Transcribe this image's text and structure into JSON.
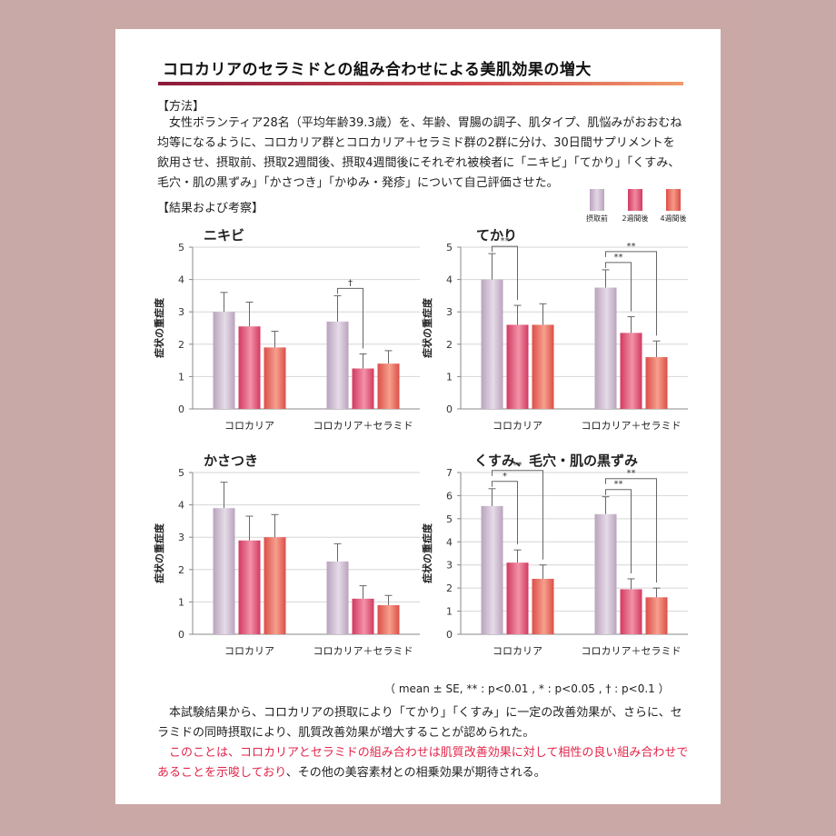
{
  "title": "コロカリアのセラミドとの組み合わせによる美肌効果の増大",
  "method": {
    "heading": "【方法】",
    "body": "女性ボランティア28名（平均年齢39.3歳）を、年齢、胃腸の調子、肌タイプ、肌悩みがおおむね均等になるように、コロカリア群とコロカリア＋セラミド群の2群に分け、30日間サプリメントを飲用させ、摂取前、摂取2週間後、摂取4週間後にそれぞれ被検者に「ニキビ」「てかり」「くすみ、毛穴・肌の黒ずみ」「かさつき」「かゆみ・発疹」について自己評価させた。"
  },
  "results_heading": "【結果および考察】",
  "legend": [
    {
      "label": "摂取前",
      "color": "#c7b3cb"
    },
    {
      "label": "2週間後",
      "color": "#df4f72"
    },
    {
      "label": "4週間後",
      "color": "#e8605a"
    }
  ],
  "chart_data": [
    {
      "type": "bar",
      "title": "ニキビ",
      "ylabel": "症状の重症度",
      "categories": [
        "コロカリア",
        "コロカリア＋セラミド"
      ],
      "ylim": [
        0,
        5
      ],
      "yticks": [
        "0",
        "1",
        "2",
        "3",
        "4",
        "5"
      ],
      "series": [
        {
          "name": "摂取前",
          "values": [
            3.0,
            2.7
          ],
          "errors": [
            0.6,
            0.8
          ]
        },
        {
          "name": "2週間後",
          "values": [
            2.55,
            1.25
          ],
          "errors": [
            0.75,
            0.45
          ]
        },
        {
          "name": "4週間後",
          "values": [
            1.9,
            1.4
          ],
          "errors": [
            0.5,
            0.4
          ]
        }
      ],
      "significance": [
        {
          "group": 1,
          "from": 0,
          "to": 1,
          "label": "†"
        }
      ]
    },
    {
      "type": "bar",
      "title": "てかり",
      "ylabel": "症状の重症度",
      "categories": [
        "コロカリア",
        "コロカリア＋セラミド"
      ],
      "ylim": [
        0,
        5
      ],
      "yticks": [
        "0",
        "1",
        "2",
        "3",
        "4",
        "5"
      ],
      "series": [
        {
          "name": "摂取前",
          "values": [
            4.0,
            3.75
          ],
          "errors": [
            0.8,
            0.55
          ]
        },
        {
          "name": "2週間後",
          "values": [
            2.6,
            2.35
          ],
          "errors": [
            0.6,
            0.5
          ]
        },
        {
          "name": "4週間後",
          "values": [
            2.6,
            1.6
          ],
          "errors": [
            0.65,
            0.5
          ]
        }
      ],
      "significance": [
        {
          "group": 0,
          "from": 0,
          "to": 1,
          "label": "**"
        },
        {
          "group": 1,
          "from": 0,
          "to": 1,
          "label": "**"
        },
        {
          "group": 1,
          "from": 0,
          "to": 2,
          "label": "**"
        }
      ]
    },
    {
      "type": "bar",
      "title": "かさつき",
      "ylabel": "症状の重症度",
      "categories": [
        "コロカリア",
        "コロカリア＋セラミド"
      ],
      "ylim": [
        0,
        5
      ],
      "yticks": [
        "0",
        "1",
        "2",
        "3",
        "4",
        "5"
      ],
      "series": [
        {
          "name": "摂取前",
          "values": [
            3.9,
            2.25
          ],
          "errors": [
            0.8,
            0.55
          ]
        },
        {
          "name": "2週間後",
          "values": [
            2.9,
            1.1
          ],
          "errors": [
            0.75,
            0.4
          ]
        },
        {
          "name": "4週間後",
          "values": [
            3.0,
            0.9
          ],
          "errors": [
            0.7,
            0.3
          ]
        }
      ],
      "significance": []
    },
    {
      "type": "bar",
      "title": "くすみ、毛穴・肌の黒ずみ",
      "ylabel": "症状の重症度",
      "categories": [
        "コロカリア",
        "コロカリア＋セラミド"
      ],
      "ylim": [
        0,
        7
      ],
      "yticks": [
        "0",
        "1",
        "2",
        "3",
        "4",
        "5",
        "6",
        "7"
      ],
      "series": [
        {
          "name": "摂取前",
          "values": [
            5.55,
            5.2
          ],
          "errors": [
            0.75,
            0.75
          ]
        },
        {
          "name": "2週間後",
          "values": [
            3.1,
            1.95
          ],
          "errors": [
            0.55,
            0.45
          ]
        },
        {
          "name": "4週間後",
          "values": [
            2.4,
            1.6
          ],
          "errors": [
            0.6,
            0.4
          ]
        }
      ],
      "significance": [
        {
          "group": 0,
          "from": 0,
          "to": 1,
          "label": "*"
        },
        {
          "group": 0,
          "from": 0,
          "to": 2,
          "label": "**"
        },
        {
          "group": 1,
          "from": 0,
          "to": 1,
          "label": "**"
        },
        {
          "group": 1,
          "from": 0,
          "to": 2,
          "label": "**"
        }
      ]
    }
  ],
  "footnote": "（ mean ± SE, ** : p<0.01 , * : p<0.05 , † : p<0.1 ）",
  "conclusion": {
    "line1": "本試験結果から、コロカリアの摂取により「てかり」「くすみ」に一定の改善効果が、さらに、セラミドの同時摂取により、肌質改善効果が増大することが認められた。",
    "line2_red": "このことは、コロカリアとセラミドの組み合わせは肌質改善効果に対して相性の良い組み合わせであることを示唆しており",
    "line2_rest": "、その他の美容素材との相乗効果が期待される。"
  }
}
